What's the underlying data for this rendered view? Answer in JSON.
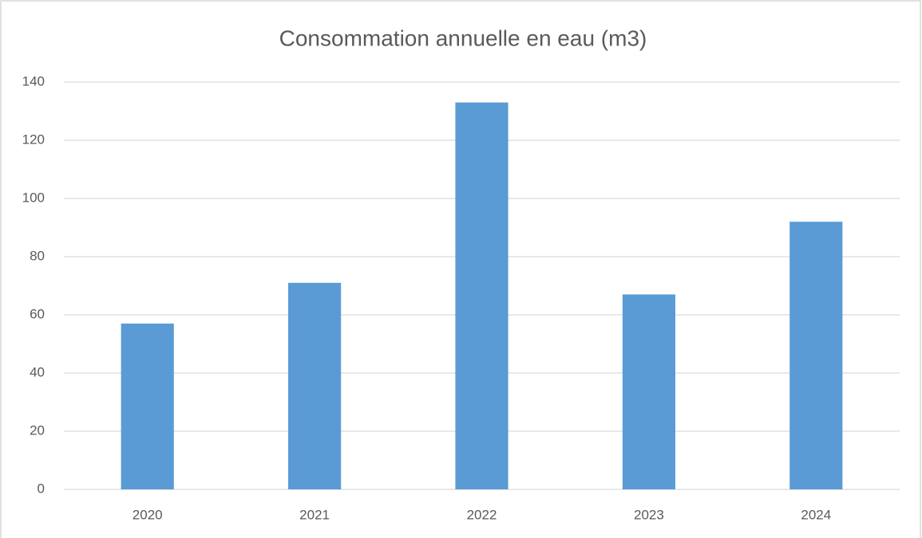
{
  "chart_data": {
    "type": "bar",
    "title": "Consommation annuelle en eau (m3)",
    "categories": [
      "2020",
      "2021",
      "2022",
      "2023",
      "2024"
    ],
    "values": [
      57,
      71,
      133,
      67,
      92
    ],
    "color": "#5b9bd5",
    "ylim": [
      0,
      140
    ],
    "yticks": [
      0,
      20,
      40,
      60,
      80,
      100,
      120,
      140
    ],
    "grid": true
  }
}
